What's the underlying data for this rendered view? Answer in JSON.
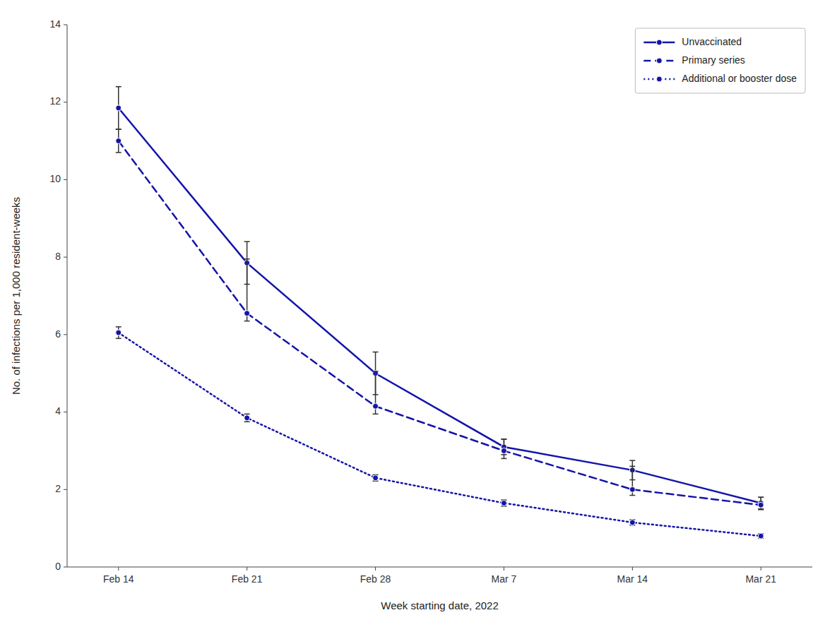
{
  "chart_data": {
    "type": "line",
    "x_label": "Week starting date, 2022",
    "y_label": "No. of infections per 1,000 resident-weeks",
    "categories": [
      "Feb 14",
      "Feb 21",
      "Feb 28",
      "Mar 7",
      "Mar 14",
      "Mar 21"
    ],
    "series": [
      {
        "name": "Unvaccinated",
        "color": "#1414aa",
        "line_style": "solid",
        "marker": "circle",
        "values": [
          11.85,
          7.85,
          5.0,
          3.1,
          2.5,
          1.65
        ],
        "error_low": [
          0.55,
          0.55,
          0.55,
          0.2,
          0.25,
          0.15
        ],
        "error_high": [
          0.55,
          0.55,
          0.55,
          0.2,
          0.25,
          0.15
        ]
      },
      {
        "name": "Primary series",
        "color": "#1414aa",
        "line_style": "dashed",
        "marker": "circle",
        "values": [
          11.0,
          6.55,
          4.15,
          3.0,
          2.0,
          1.6
        ],
        "error_low": [
          0.3,
          0.2,
          0.2,
          0.2,
          0.15,
          0.12
        ],
        "error_high": [
          0.3,
          1.4,
          0.9,
          0.3,
          0.6,
          0.2
        ]
      },
      {
        "name": "Additional or booster dose",
        "color": "#1414aa",
        "line_style": "dotted",
        "marker": "circle",
        "values": [
          6.05,
          3.85,
          2.3,
          1.65,
          1.15,
          0.8
        ],
        "error_low": [
          0.15,
          0.1,
          0.08,
          0.08,
          0.07,
          0.06
        ],
        "error_high": [
          0.15,
          0.1,
          0.08,
          0.08,
          0.07,
          0.06
        ]
      }
    ],
    "ylim": [
      0,
      14
    ],
    "yticks": [
      0,
      2,
      4,
      6,
      8,
      10,
      12,
      14
    ],
    "grid": false,
    "legend": "upper right"
  }
}
